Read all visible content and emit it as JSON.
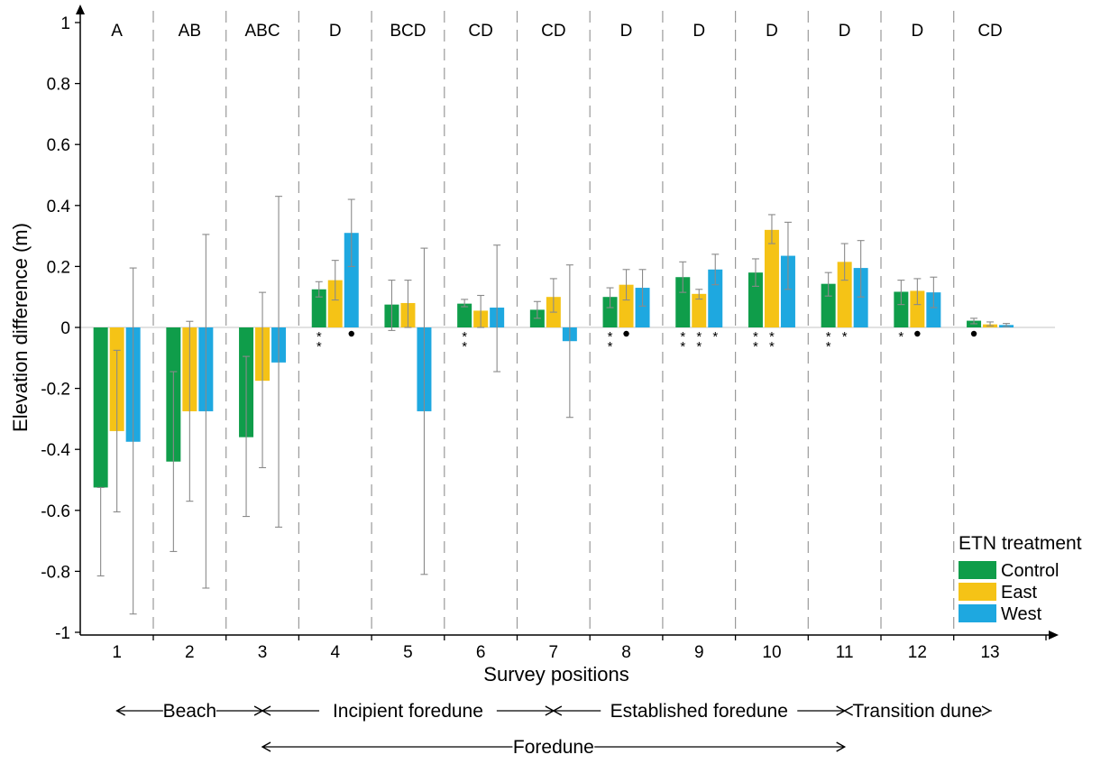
{
  "chart_data": {
    "type": "bar",
    "title": "",
    "xlabel": "Survey positions",
    "ylabel": "Elevation difference (m)",
    "ylim": [
      -1,
      1
    ],
    "yticks": [
      -1,
      -0.8,
      -0.6,
      -0.4,
      -0.2,
      0,
      0.2,
      0.4,
      0.6,
      0.8,
      1
    ],
    "ytick_labels": [
      "-1",
      "-0.8",
      "-0.6",
      "-0.4",
      "-0.2",
      "0",
      "0.2",
      "0.4",
      "0.6",
      "0.8",
      "1"
    ],
    "categories": [
      "1",
      "2",
      "3",
      "4",
      "5",
      "6",
      "7",
      "8",
      "9",
      "10",
      "11",
      "12",
      "13"
    ],
    "group_letters": [
      "A",
      "AB",
      "ABC",
      "D",
      "BCD",
      "CD",
      "CD",
      "D",
      "D",
      "D",
      "D",
      "D",
      "CD"
    ],
    "legend": {
      "title": "ETN treatment",
      "placement": "bottom-right"
    },
    "series": [
      {
        "name": "Control",
        "color": "#0f9d4a",
        "values": [
          -0.525,
          -0.44,
          -0.36,
          0.125,
          0.075,
          0.078,
          0.058,
          0.1,
          0.165,
          0.18,
          0.143,
          0.117,
          0.022
        ],
        "err_low": [
          -0.815,
          -0.735,
          -0.62,
          0.1,
          -0.01,
          0.068,
          0.03,
          0.065,
          0.115,
          0.135,
          0.103,
          0.075,
          0.012
        ],
        "err_high": [
          -0.525,
          -0.145,
          -0.095,
          0.15,
          0.155,
          0.092,
          0.085,
          0.13,
          0.215,
          0.225,
          0.18,
          0.155,
          0.03
        ],
        "markers": [
          "",
          "",
          "",
          "**",
          "",
          "**",
          "",
          "**",
          "**",
          "**",
          "**",
          "*",
          "•"
        ]
      },
      {
        "name": "East",
        "color": "#f5c316",
        "values": [
          -0.34,
          -0.275,
          -0.175,
          0.155,
          0.08,
          0.055,
          0.1,
          0.14,
          0.11,
          0.32,
          0.215,
          0.12,
          0.01
        ],
        "err_low": [
          -0.605,
          -0.57,
          -0.46,
          0.09,
          0.0,
          0.0,
          0.05,
          0.09,
          0.093,
          0.275,
          0.155,
          0.075,
          0.005
        ],
        "err_high": [
          -0.075,
          0.02,
          0.115,
          0.22,
          0.155,
          0.105,
          0.16,
          0.19,
          0.125,
          0.37,
          0.275,
          0.16,
          0.018
        ],
        "markers": [
          "",
          "",
          "",
          "",
          "",
          "",
          "",
          "•",
          "**",
          "**",
          "*",
          "•",
          ""
        ]
      },
      {
        "name": "West",
        "color": "#1ea8e0",
        "values": [
          -0.375,
          -0.275,
          -0.115,
          0.31,
          -0.275,
          0.065,
          -0.045,
          0.13,
          0.19,
          0.235,
          0.195,
          0.115,
          0.008
        ],
        "err_low": [
          -0.94,
          -0.855,
          -0.655,
          0.2,
          -0.81,
          -0.145,
          -0.295,
          0.07,
          0.14,
          0.125,
          0.1,
          0.065,
          0.003
        ],
        "err_high": [
          0.195,
          0.305,
          0.43,
          0.42,
          0.26,
          0.27,
          0.205,
          0.19,
          0.24,
          0.345,
          0.285,
          0.165,
          0.013
        ],
        "markers": [
          "",
          "",
          "",
          "•",
          "",
          "",
          "",
          "",
          "*",
          "",
          "",
          "",
          ""
        ]
      }
    ],
    "zones": [
      {
        "label": "Beach",
        "from": "1",
        "to": "3"
      },
      {
        "label": "Incipient foredune",
        "from": "3",
        "to": "7"
      },
      {
        "label": "Established foredune",
        "from": "7",
        "to": "11"
      },
      {
        "label": "Transition dune",
        "from": "11",
        "to": "13"
      },
      {
        "label": "Foredune",
        "from": "3",
        "to": "11"
      }
    ]
  }
}
